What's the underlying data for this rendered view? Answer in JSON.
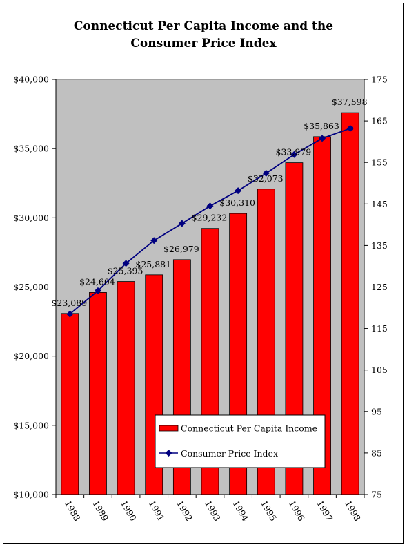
{
  "chart_data": {
    "type": "bar",
    "title_lines": [
      "Connecticut Per Capita Income and the",
      "Consumer Price Index"
    ],
    "categories": [
      "1988",
      "1989",
      "1990",
      "1991",
      "1992",
      "1993",
      "1994",
      "1995",
      "1996",
      "1997",
      "1998"
    ],
    "series": [
      {
        "name": "Connecticut Per Capita Income",
        "type": "bar",
        "axis": "left",
        "color": "#ff0000",
        "values": [
          23089,
          24604,
          25395,
          25881,
          26979,
          29232,
          30310,
          32073,
          33979,
          35863,
          37598
        ],
        "data_labels": [
          "$23,089",
          "$24,604",
          "$25,395",
          "$25,881",
          "$26,979",
          "$29,232",
          "$30,310",
          "$32,073",
          "$33,979",
          "$35,863",
          "$37,598"
        ]
      },
      {
        "name": "Consumer Price Index",
        "type": "line",
        "axis": "right",
        "color": "#000080",
        "marker": "diamond",
        "values": [
          118.5,
          124.1,
          130.7,
          136.2,
          140.3,
          144.5,
          148.2,
          152.4,
          156.9,
          160.8,
          163.2
        ]
      }
    ],
    "y_left": {
      "min": 10000,
      "max": 40000,
      "ticks": [
        10000,
        15000,
        20000,
        25000,
        30000,
        35000,
        40000
      ],
      "tick_labels": [
        "$10,000",
        "$15,000",
        "$20,000",
        "$25,000",
        "$30,000",
        "$35,000",
        "$40,000"
      ]
    },
    "y_right": {
      "min": 75,
      "max": 175,
      "ticks": [
        75,
        85,
        95,
        105,
        115,
        125,
        135,
        145,
        155,
        165,
        175
      ],
      "tick_labels": [
        "75",
        "85",
        "95",
        "105",
        "115",
        "125",
        "135",
        "145",
        "155",
        "165",
        "175"
      ]
    },
    "grid": false,
    "plot_background": "#c0c0c0",
    "legend_position": "inside-bottom-right",
    "legend": [
      "Connecticut Per Capita Income",
      "Consumer Price Index"
    ]
  }
}
